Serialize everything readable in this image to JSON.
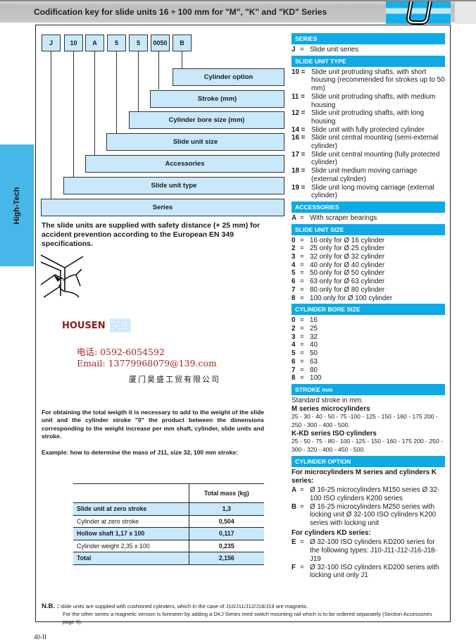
{
  "header": {
    "title": "Codification key for slide units 16 ÷ 100 mm for \"M\", \"K\" and \"KD\" Series",
    "logo": "U"
  },
  "side_tab": "High-Tech",
  "code": {
    "boxes": [
      "J",
      "10",
      "A",
      "5",
      "5",
      "0050",
      "B"
    ],
    "labels": [
      "Cylinder option",
      "Stroke  (mm)",
      "Cylinder bore size (mm)",
      "Slide unit size",
      "Accessories",
      "Slide unit type",
      "Series"
    ]
  },
  "safety_text": "The slide units are supplied with safety distance (+ 25 mm) for accident prevention according to the European EN 349 specifications.",
  "watermark": {
    "brand": "HOUSEN",
    "brand_cn": "昊盛",
    "phone": "电话: 0592-6054592",
    "email": "Email: 13779968079@139.com",
    "company": "厦门昊盛工贸有限公司"
  },
  "weight_text": "For obtaining the total weigth it is necessary to add to the weight of the slide unit and the cylinder stroke \"0\" the product between the dimensions corresponding to the weight increase per mm shaft, cylinder, slide units and stroke.",
  "example_text": "Example: how to determine the mass of J11, size 32, 100 mm stroke:",
  "mass_table": {
    "header": "Total mass (kg)",
    "rows": [
      {
        "label": "Slide unit at zero stroke",
        "value": "1,3"
      },
      {
        "label": "Cylinder at zero stroke",
        "value": "0,504"
      },
      {
        "label": "Hollow shaft 1,17 x 100",
        "value": "0,117"
      },
      {
        "label": "Cylinder weight 2,35 x 100",
        "value": "0,235"
      },
      {
        "label": "Total",
        "value": "2,156"
      }
    ]
  },
  "right": {
    "series": {
      "title": "SERIES",
      "items": [
        {
          "k": "J",
          "t": "Slide unit series"
        }
      ]
    },
    "type": {
      "title": "SLIDE UNIT TYPE",
      "items": [
        {
          "k": "10",
          "t": "Slide unit protruding shafts, with short housing (recommended for strokes up to 50 mm)"
        },
        {
          "k": "11",
          "t": "Slide unit protruding shafts, with medium housing"
        },
        {
          "k": "12",
          "t": "Slide unit protruding shafts, with long housing"
        },
        {
          "k": "14",
          "t": "Slide unit with fully protected cylinder"
        },
        {
          "k": "16",
          "t": "Slide unit central mounting (semi-external cylinder)"
        },
        {
          "k": "17",
          "t": "Slide unit central mounting (fully protected cylinder)"
        },
        {
          "k": "18",
          "t": "Slide unit medium moving carriage (external cylinder)"
        },
        {
          "k": "19",
          "t": "Slide unit long moving carriage (external cylinder)"
        }
      ]
    },
    "accessories": {
      "title": "ACCESSORIES",
      "items": [
        {
          "k": "A",
          "t": "With scraper bearings"
        }
      ]
    },
    "size": {
      "title": "SLIDE UNIT SIZE",
      "items": [
        {
          "k": "0",
          "t": "16 only for Ø 16 cylinder"
        },
        {
          "k": "2",
          "t": "25 only for Ø 25 cylinder"
        },
        {
          "k": "3",
          "t": "32 only for Ø 32 cylinder"
        },
        {
          "k": "4",
          "t": "40 only for Ø 40 cylinder"
        },
        {
          "k": "5",
          "t": "50 only for Ø 50 cylinder"
        },
        {
          "k": "6",
          "t": "63 only for Ø 63 cylinder"
        },
        {
          "k": "7",
          "t": "80 only for Ø 80 cylinder"
        },
        {
          "k": "8",
          "t": "100 only for Ø 100 cylinder"
        }
      ]
    },
    "bore": {
      "title": "CYLINDER BORE SIZE",
      "items": [
        {
          "k": "0",
          "t": "16"
        },
        {
          "k": "2",
          "t": "25"
        },
        {
          "k": "3",
          "t": "32"
        },
        {
          "k": "4",
          "t": "40"
        },
        {
          "k": "5",
          "t": "50"
        },
        {
          "k": "6",
          "t": "63"
        },
        {
          "k": "7",
          "t": "80"
        },
        {
          "k": "8",
          "t": "100"
        }
      ]
    },
    "stroke": {
      "title": "STROKE mm",
      "intro": "Standard stroke in mm:",
      "m_title": "M series microcylinders",
      "m_values": "25 - 30 - 40 - 50 - 75 -100 - 125 - 150 - 160 - 175 200 - 250 - 300 - 400 - 500.",
      "k_title": "K-KD series ISO cylinders",
      "k_values": "25 - 50 - 75 - 80 - 100 - 125 - 150 - 160 - 175 200 - 250 - 300 - 320 - 400 - 450 - 500."
    },
    "option": {
      "title": "CYLINDER OPTION",
      "mk_title": "For microcylinders M series and cylinders K series:",
      "mk_items": [
        {
          "k": "A",
          "t": "Ø 16-25 microcylinders M150 series Ø 32-100 ISO cylinders K200 series"
        },
        {
          "k": "B",
          "t": "Ø 16-25 microcylinders M250 series with locking unit Ø 32-100 ISO cylinders K200 series with locking unit"
        }
      ],
      "kd_title": "For cylinders KD series:",
      "kd_items": [
        {
          "k": "E",
          "t": "Ø 32-100 ISO cylinders KD200 series for the following types: J10-J11-J12-J16-J18-J19"
        },
        {
          "k": "F",
          "t": "Ø 32-100 ISO cylinders KD200 series with locking unit only J1"
        }
      ]
    }
  },
  "note": {
    "label": "N.B. :",
    "line1": "slide units are supplied with cushioned cylinders, which in the case of J10/J11/J12/J18/J19 are magnetic.",
    "line2": "For the other series a magnetic version is foreseen by adding a DKJ Series reed switch mounting rail which is to be ordered separately (Section Accessories page 6)."
  },
  "page_number": "40-II",
  "colors": {
    "accent": "#0fa9e6",
    "box_fill": "#c9e9fb",
    "side_tab": "#47b6e8"
  }
}
